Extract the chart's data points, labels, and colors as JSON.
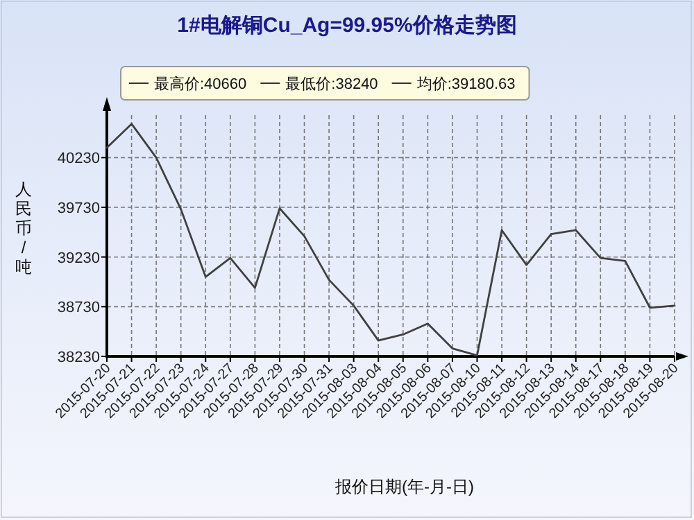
{
  "chart_data": {
    "type": "line",
    "title": "1#电解铜Cu_Ag=99.95%价格走势图",
    "xlabel": "报价日期(年-月-日)",
    "ylabel": "人民币/吨",
    "annotations": [
      "最高价:40660",
      "最低价:38240",
      "均价:39180.63"
    ],
    "categories": [
      "2015-07-20",
      "2015-07-21",
      "2015-07-22",
      "2015-07-23",
      "2015-07-24",
      "2015-07-27",
      "2015-07-28",
      "2015-07-29",
      "2015-07-30",
      "2015-07-31",
      "2015-08-03",
      "2015-08-04",
      "2015-08-05",
      "2015-08-06",
      "2015-08-07",
      "2015-08-10",
      "2015-08-11",
      "2015-08-12",
      "2015-08-13",
      "2015-08-14",
      "2015-08-17",
      "2015-08-18",
      "2015-08-19",
      "2015-08-20"
    ],
    "series": [
      {
        "color": "#404040",
        "values": [
          40330,
          40570,
          40230,
          39710,
          39030,
          39220,
          38920,
          39720,
          39440,
          39000,
          38740,
          38390,
          38450,
          38560,
          38310,
          38240,
          39500,
          39150,
          39460,
          39500,
          39220,
          39190,
          38720,
          38740
        ]
      }
    ],
    "ylim": [
      38230,
      40700
    ],
    "yticks": [
      38230,
      38730,
      39230,
      39730,
      40230
    ],
    "grid": true,
    "marker": "none",
    "line_style": "solid"
  }
}
